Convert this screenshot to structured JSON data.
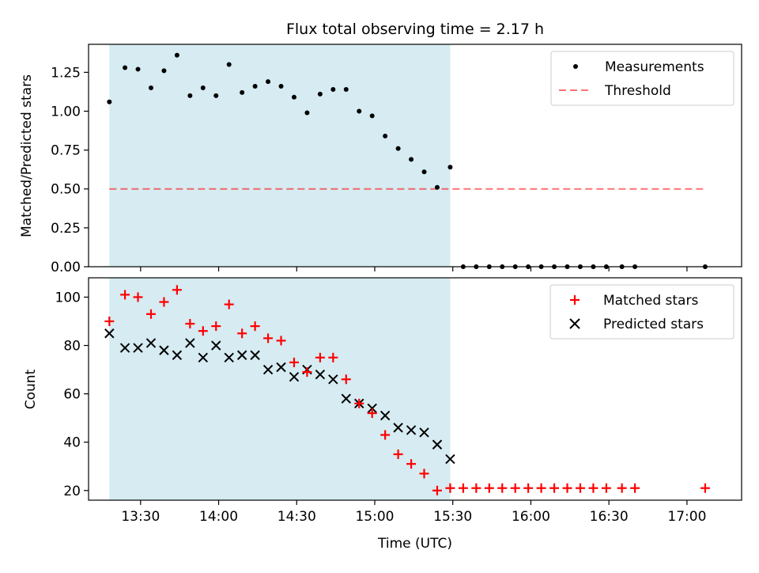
{
  "title": "Flux total observing time = 2.17 h",
  "colors": {
    "span": "#add8e6",
    "threshold": "#ff0000",
    "measurement": "#000000",
    "matched": "#ff0000",
    "predicted": "#000000"
  },
  "chart_data": [
    {
      "type": "scatter",
      "ylabel": "Matched/Predicted stars",
      "xlim": [
        "13:10",
        "17:21"
      ],
      "ylim": [
        0,
        1.43
      ],
      "yticks": [
        "0.00",
        "0.25",
        "0.50",
        "0.75",
        "1.00",
        "1.25"
      ],
      "xticks": [
        "13:30",
        "14:00",
        "14:30",
        "15:00",
        "15:30",
        "16:00",
        "16:30",
        "17:00"
      ],
      "highlight_span": [
        "13:18",
        "15:29"
      ],
      "legend": {
        "position": "upper-right",
        "entries": [
          "Measurements",
          "Threshold"
        ]
      },
      "threshold": {
        "name": "Threshold",
        "y": 0.5,
        "x": [
          "13:18",
          "17:07"
        ]
      },
      "series": [
        {
          "name": "Measurements",
          "marker": "dot",
          "x": [
            "13:18",
            "13:24",
            "13:29",
            "13:34",
            "13:39",
            "13:44",
            "13:49",
            "13:54",
            "13:59",
            "14:04",
            "14:09",
            "14:14",
            "14:19",
            "14:24",
            "14:29",
            "14:34",
            "14:39",
            "14:44",
            "14:49",
            "14:54",
            "14:59",
            "15:04",
            "15:09",
            "15:14",
            "15:19",
            "15:24",
            "15:29",
            "15:34",
            "15:39",
            "15:44",
            "15:49",
            "15:54",
            "15:59",
            "16:04",
            "16:09",
            "16:14",
            "16:19",
            "16:24",
            "16:29",
            "16:35",
            "16:40",
            "17:07"
          ],
          "y": [
            1.06,
            1.28,
            1.27,
            1.15,
            1.26,
            1.36,
            1.1,
            1.15,
            1.1,
            1.3,
            1.12,
            1.16,
            1.19,
            1.16,
            1.09,
            0.99,
            1.11,
            1.14,
            1.14,
            1.0,
            0.97,
            0.84,
            0.76,
            0.69,
            0.61,
            0.51,
            0.64,
            0,
            0,
            0,
            0,
            0,
            0,
            0,
            0,
            0,
            0,
            0,
            0,
            0,
            0,
            0
          ]
        }
      ]
    },
    {
      "type": "scatter",
      "xlabel": "Time (UTC)",
      "ylabel": "Count",
      "xlim": [
        "13:10",
        "17:21"
      ],
      "ylim": [
        16,
        108
      ],
      "yticks": [
        "20",
        "40",
        "60",
        "80",
        "100"
      ],
      "xticks": [
        "13:30",
        "14:00",
        "14:30",
        "15:00",
        "15:30",
        "16:00",
        "16:30",
        "17:00"
      ],
      "highlight_span": [
        "13:18",
        "15:29"
      ],
      "legend": {
        "position": "upper-right",
        "entries": [
          "Matched stars",
          "Predicted stars"
        ]
      },
      "series": [
        {
          "name": "Matched stars",
          "marker": "plus",
          "x": [
            "13:18",
            "13:24",
            "13:29",
            "13:34",
            "13:39",
            "13:44",
            "13:49",
            "13:54",
            "13:59",
            "14:04",
            "14:09",
            "14:14",
            "14:19",
            "14:24",
            "14:29",
            "14:34",
            "14:39",
            "14:44",
            "14:49",
            "14:54",
            "14:59",
            "15:04",
            "15:09",
            "15:14",
            "15:19",
            "15:24",
            "15:29",
            "15:34",
            "15:39",
            "15:44",
            "15:49",
            "15:54",
            "15:59",
            "16:04",
            "16:09",
            "16:14",
            "16:19",
            "16:24",
            "16:29",
            "16:35",
            "16:40",
            "17:07"
          ],
          "y": [
            90,
            101,
            100,
            93,
            98,
            103,
            89,
            86,
            88,
            97,
            85,
            88,
            83,
            82,
            73,
            69,
            75,
            75,
            66,
            56,
            52,
            43,
            35,
            31,
            27,
            20,
            21,
            21,
            21,
            21,
            21,
            21,
            21,
            21,
            21,
            21,
            21,
            21,
            21,
            21,
            21,
            21
          ]
        },
        {
          "name": "Predicted stars",
          "marker": "x",
          "x": [
            "13:18",
            "13:24",
            "13:29",
            "13:34",
            "13:39",
            "13:44",
            "13:49",
            "13:54",
            "13:59",
            "14:04",
            "14:09",
            "14:14",
            "14:19",
            "14:24",
            "14:29",
            "14:34",
            "14:39",
            "14:44",
            "14:49",
            "14:54",
            "14:59",
            "15:04",
            "15:09",
            "15:14",
            "15:19",
            "15:24",
            "15:29"
          ],
          "y": [
            85,
            79,
            79,
            81,
            78,
            76,
            81,
            75,
            80,
            75,
            76,
            76,
            70,
            71,
            67,
            70,
            68,
            66,
            58,
            56,
            54,
            51,
            46,
            45,
            44,
            39,
            33
          ]
        }
      ]
    }
  ]
}
